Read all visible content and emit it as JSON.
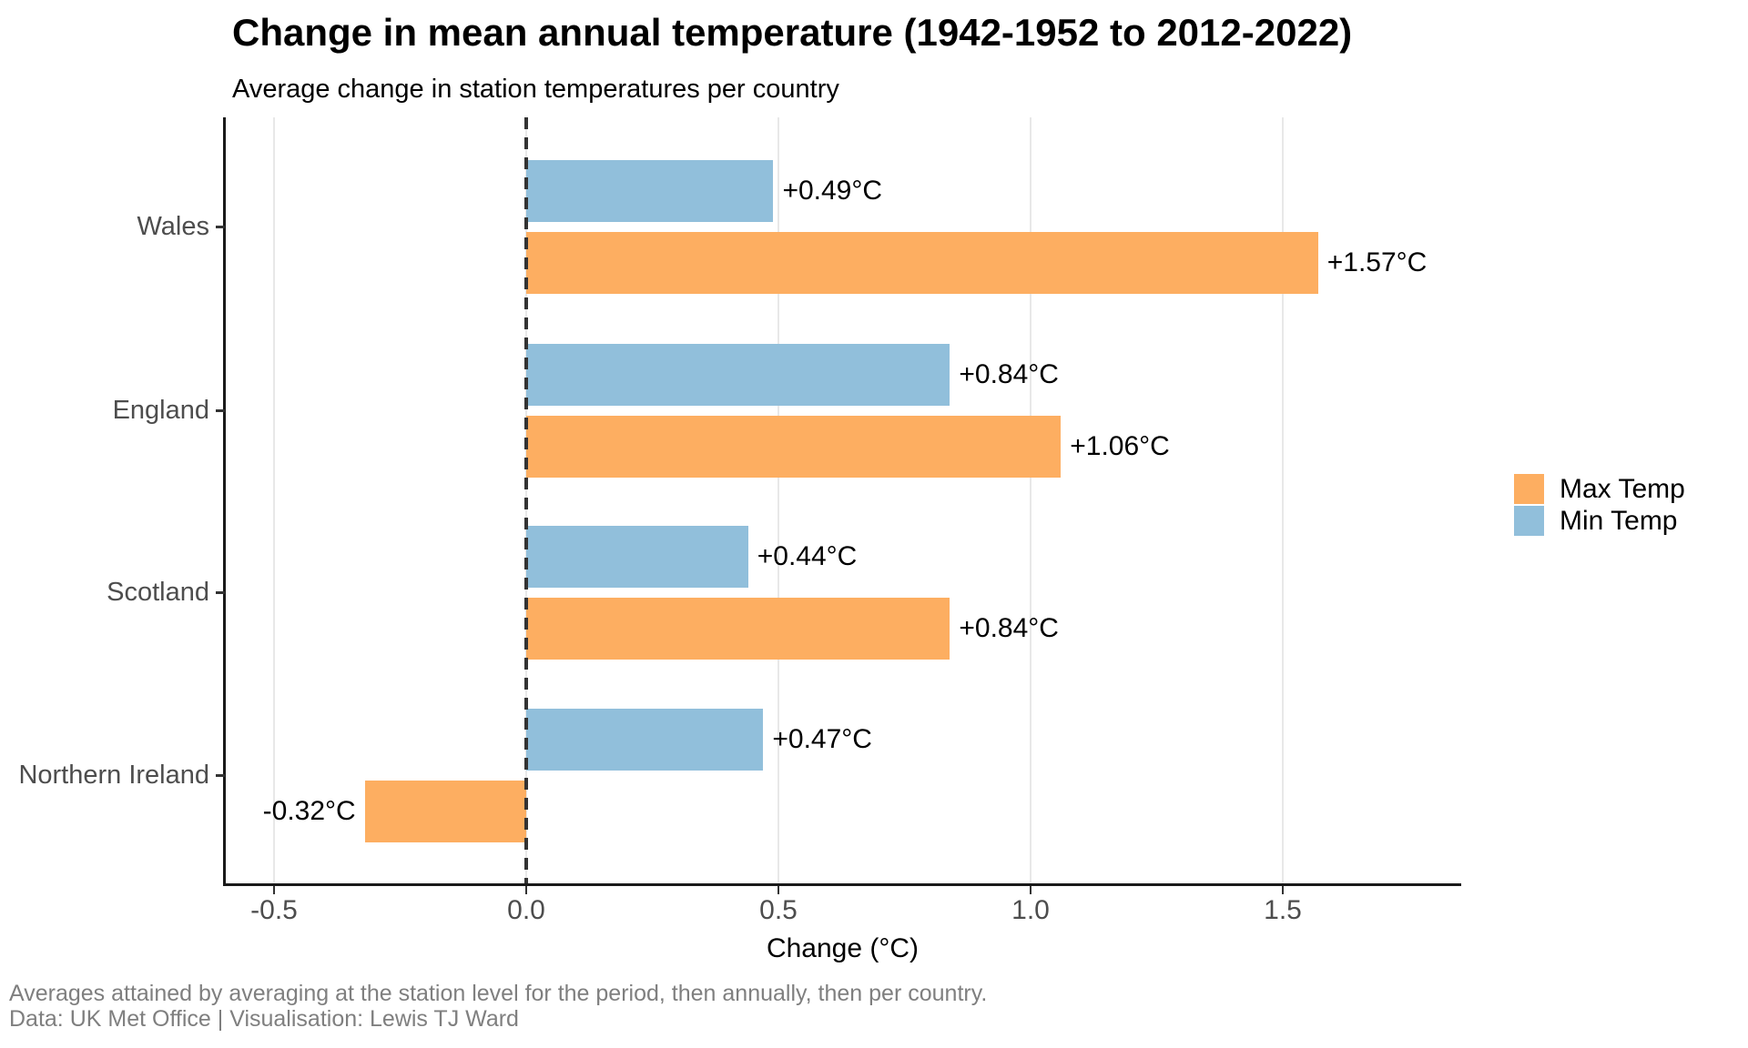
{
  "caption": {
    "line1": "Averages attained by averaging at the station level for the period, then annually, then per country.",
    "line2": "Data: UK Met Office | Visualisation: Lewis TJ Ward"
  },
  "legend": {
    "items": [
      {
        "label": "Max Temp",
        "color": "#FDAE61"
      },
      {
        "label": "Min Temp",
        "color": "#91BFDB"
      }
    ]
  },
  "chart_data": {
    "type": "bar",
    "orientation": "horizontal",
    "title": "Change in mean annual temperature (1942-1952 to 2012-2022)",
    "subtitle": "Average change in station temperatures per country",
    "xlabel": "Change (°C)",
    "ylabel": "",
    "categories": [
      "Wales",
      "England",
      "Scotland",
      "Northern Ireland"
    ],
    "series": [
      {
        "name": "Min Temp",
        "color": "#91BFDB",
        "values": [
          0.49,
          0.84,
          0.44,
          0.47
        ],
        "value_labels": [
          "+0.49°C",
          "+0.84°C",
          "+0.44°C",
          "+0.47°C"
        ]
      },
      {
        "name": "Max Temp",
        "color": "#FDAE61",
        "values": [
          1.57,
          1.06,
          0.84,
          -0.32
        ],
        "value_labels": [
          "+1.57°C",
          "+1.06°C",
          "+0.84°C",
          "-0.32°C"
        ]
      }
    ],
    "bar_order_within_group": [
      "Min Temp",
      "Max Temp"
    ],
    "x_ticks": [
      {
        "value": -0.5,
        "label": "-0.5"
      },
      {
        "value": 0.0,
        "label": "0.0"
      },
      {
        "value": 0.5,
        "label": "0.5"
      },
      {
        "value": 1.0,
        "label": "1.0"
      },
      {
        "value": 1.5,
        "label": "1.5"
      }
    ],
    "xlim": [
      -0.6,
      1.85
    ],
    "zero_reference_line": true,
    "grid": "vertical-major-only",
    "legend_position": "right"
  }
}
